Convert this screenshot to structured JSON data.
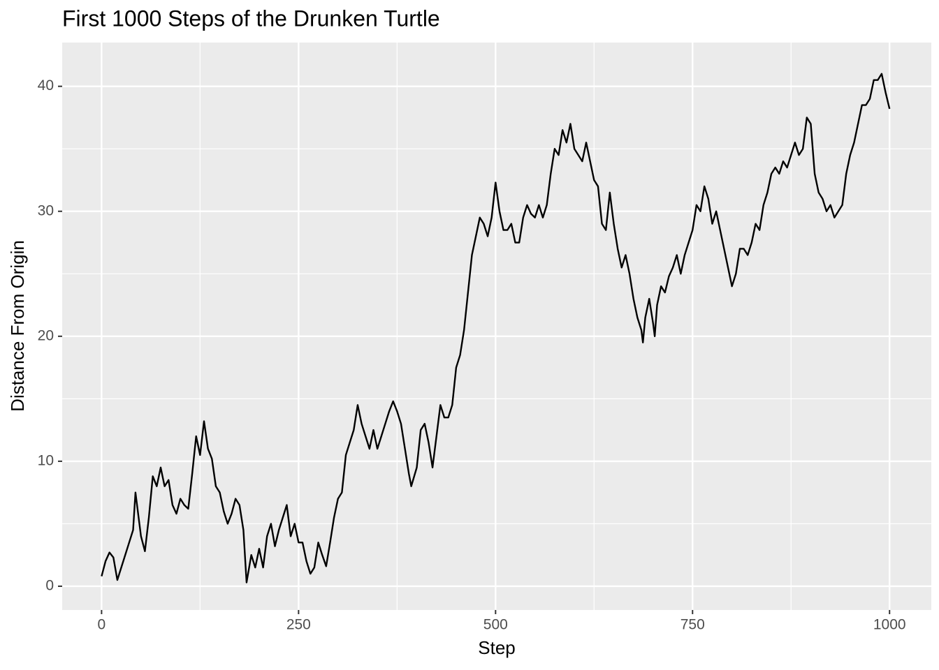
{
  "chart_data": {
    "type": "line",
    "title": "First 1000 Steps of the Drunken Turtle",
    "x_label": "Step",
    "y_label": "Distance From Origin",
    "x": [
      0,
      5,
      10,
      15,
      20,
      25,
      30,
      35,
      40,
      43,
      50,
      55,
      60,
      65,
      70,
      75,
      80,
      85,
      90,
      95,
      100,
      105,
      110,
      115,
      120,
      125,
      130,
      135,
      140,
      145,
      150,
      155,
      160,
      165,
      170,
      175,
      180,
      184,
      190,
      195,
      200,
      205,
      210,
      215,
      220,
      225,
      230,
      235,
      240,
      245,
      250,
      255,
      260,
      265,
      270,
      275,
      280,
      285,
      290,
      295,
      300,
      305,
      310,
      315,
      320,
      325,
      330,
      335,
      340,
      345,
      350,
      355,
      360,
      365,
      370,
      375,
      380,
      385,
      390,
      393,
      400,
      405,
      410,
      415,
      420,
      425,
      430,
      435,
      440,
      445,
      450,
      455,
      460,
      465,
      470,
      475,
      480,
      485,
      490,
      495,
      500,
      505,
      510,
      515,
      520,
      525,
      530,
      535,
      540,
      545,
      550,
      555,
      560,
      565,
      570,
      575,
      580,
      585,
      590,
      595,
      600,
      605,
      610,
      615,
      620,
      625,
      630,
      635,
      640,
      645,
      650,
      655,
      660,
      665,
      670,
      675,
      680,
      685,
      687,
      690,
      695,
      700,
      702,
      705,
      710,
      715,
      720,
      725,
      730,
      735,
      740,
      745,
      750,
      755,
      760,
      765,
      770,
      775,
      780,
      785,
      790,
      795,
      800,
      805,
      810,
      815,
      820,
      825,
      830,
      835,
      840,
      845,
      850,
      855,
      860,
      865,
      870,
      875,
      880,
      885,
      890,
      895,
      900,
      905,
      910,
      915,
      920,
      925,
      930,
      935,
      940,
      945,
      950,
      955,
      960,
      965,
      970,
      975,
      980,
      985,
      990,
      995,
      1000
    ],
    "series": [
      {
        "name": "distance",
        "color": "#000000",
        "values": [
          0.8,
          2.0,
          2.7,
          2.3,
          0.5,
          1.5,
          2.5,
          3.5,
          4.5,
          7.5,
          4.0,
          2.8,
          5.5,
          8.8,
          8.0,
          9.5,
          8.0,
          8.5,
          6.5,
          5.8,
          7.0,
          6.5,
          6.2,
          9.0,
          12.0,
          10.5,
          13.2,
          11.0,
          10.2,
          8.0,
          7.5,
          6.0,
          5.0,
          5.8,
          7.0,
          6.5,
          4.5,
          0.3,
          2.5,
          1.5,
          3.0,
          1.5,
          4.0,
          5.0,
          3.2,
          4.5,
          5.5,
          6.5,
          4.0,
          5.0,
          3.5,
          3.5,
          2.0,
          1.0,
          1.5,
          3.5,
          2.5,
          1.6,
          3.5,
          5.5,
          7.0,
          7.5,
          10.5,
          11.5,
          12.5,
          14.5,
          13.0,
          12.0,
          11.0,
          12.5,
          11.0,
          12.0,
          13.0,
          14.0,
          14.8,
          14.0,
          13.0,
          11.0,
          9.0,
          8.0,
          9.5,
          12.5,
          13.0,
          11.5,
          9.5,
          12.0,
          14.5,
          13.5,
          13.5,
          14.5,
          17.5,
          18.5,
          20.5,
          23.5,
          26.5,
          28.0,
          29.5,
          29.0,
          28.0,
          29.5,
          32.3,
          30.0,
          28.5,
          28.5,
          29.0,
          27.5,
          27.5,
          29.5,
          30.5,
          29.8,
          29.5,
          30.5,
          29.5,
          30.5,
          33.0,
          35.0,
          34.5,
          36.5,
          35.5,
          37.0,
          35.0,
          34.5,
          34.0,
          35.5,
          34.0,
          32.5,
          32.0,
          29.0,
          28.5,
          31.5,
          29.0,
          27.0,
          25.5,
          26.5,
          25.0,
          23.0,
          21.5,
          20.5,
          19.5,
          21.5,
          23.0,
          21.0,
          20.0,
          22.5,
          24.0,
          23.5,
          24.8,
          25.5,
          26.5,
          25.0,
          26.5,
          27.5,
          28.5,
          30.5,
          30.0,
          32.0,
          31.0,
          29.0,
          30.0,
          28.5,
          27.0,
          25.5,
          24.0,
          25.0,
          27.0,
          27.0,
          26.5,
          27.5,
          29.0,
          28.5,
          30.5,
          31.5,
          33.0,
          33.5,
          33.0,
          34.0,
          33.5,
          34.5,
          35.5,
          34.5,
          35.0,
          37.5,
          37.0,
          33.0,
          31.5,
          31.0,
          30.0,
          30.5,
          29.5,
          30.0,
          30.5,
          33.0,
          34.5,
          35.5,
          37.0,
          38.5,
          38.5,
          39.0,
          40.5,
          40.5,
          41.0,
          39.5,
          38.2
        ]
      }
    ],
    "xlim": [
      -50,
      1053
    ],
    "ylim": [
      -1.9,
      43.5
    ],
    "xticks": [
      0,
      250,
      500,
      750,
      1000
    ],
    "yticks": [
      0,
      10,
      20,
      30,
      40
    ],
    "x_minor_ticks": [
      125,
      375,
      625,
      875
    ],
    "y_minor_ticks": [
      5,
      15,
      25,
      35
    ],
    "grid": true,
    "panel_color": "#ebebeb"
  }
}
